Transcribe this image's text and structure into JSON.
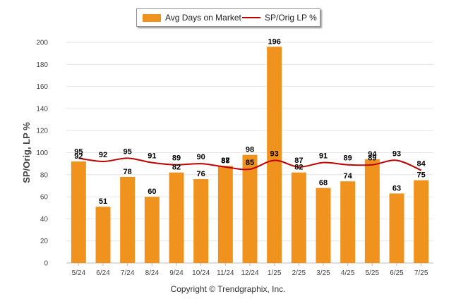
{
  "chart_data": {
    "type": "bar",
    "categories": [
      "5/24",
      "6/24",
      "7/24",
      "8/24",
      "9/24",
      "10/24",
      "11/24",
      "12/24",
      "1/25",
      "2/25",
      "3/25",
      "4/25",
      "5/25",
      "6/25",
      "7/25"
    ],
    "series": [
      {
        "name": "Avg Days on Market",
        "type": "bar",
        "color": "#F0921E",
        "values": [
          92,
          51,
          78,
          60,
          82,
          76,
          88,
          98,
          196,
          82,
          68,
          74,
          94,
          63,
          75
        ]
      },
      {
        "name": "SP/Orig LP %",
        "type": "line",
        "color": "#C00000",
        "values": [
          95,
          92,
          95,
          91,
          89,
          90,
          87,
          85,
          93,
          87,
          91,
          89,
          89,
          93,
          84
        ]
      }
    ],
    "ylabel": "SP/Orig, LP %",
    "ylim": [
      0,
      200
    ],
    "yticks": [
      0,
      20,
      40,
      60,
      80,
      100,
      120,
      140,
      160,
      180,
      200
    ],
    "grid": true,
    "legend_position": "top-center"
  },
  "footer": {
    "copyright": "Copyright © Trendgraphix, Inc."
  }
}
